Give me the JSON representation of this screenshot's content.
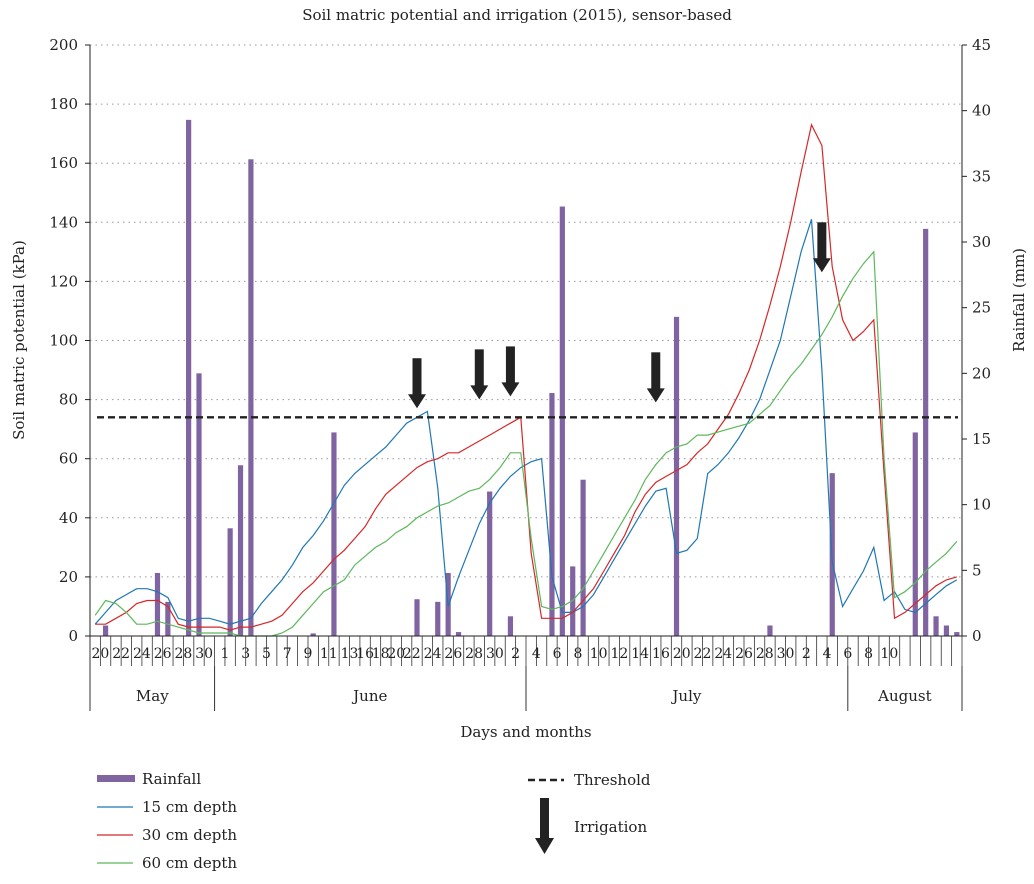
{
  "chart_data": {
    "type": "bar+line",
    "title": "Soil matric potential and irrigation (2015), sensor-based",
    "xlabel": "Days and months",
    "ylabel_left": "Soil matric potential (kPa)",
    "ylabel_right": "Rainfall (mm)",
    "ylim_left": [
      0,
      200
    ],
    "ylim_right": [
      0,
      45
    ],
    "yticks_left": [
      "0",
      "20",
      "40",
      "60",
      "80",
      "100",
      "120",
      "140",
      "160",
      "180",
      "200"
    ],
    "yticks_right": [
      "0",
      "5",
      "10",
      "15",
      "20",
      "25",
      "30",
      "35",
      "40",
      "45"
    ],
    "grid": "horizontal dotted",
    "day_ticks": [
      "20",
      "22",
      "24",
      "26",
      "28",
      "30",
      "1",
      "3",
      "5",
      "7",
      "9",
      "11",
      "13",
      "16",
      "18",
      "20",
      "22",
      "24",
      "26",
      "28",
      "30",
      "2",
      "4",
      "6",
      "8",
      "10",
      "12",
      "14",
      "16",
      "20",
      "22",
      "24",
      "26",
      "28",
      "30",
      "2",
      "4",
      "6",
      "8",
      "10"
    ],
    "months": [
      "May",
      "June",
      "July",
      "August"
    ],
    "day_index_start": "May 20",
    "rainfall": [
      {
        "day": 1,
        "mm": 0.8
      },
      {
        "day": 6,
        "mm": 4.8
      },
      {
        "day": 7,
        "mm": 2.6
      },
      {
        "day": 9,
        "mm": 39.3
      },
      {
        "day": 10,
        "mm": 20
      },
      {
        "day": 13,
        "mm": 8.2
      },
      {
        "day": 14,
        "mm": 13
      },
      {
        "day": 15,
        "mm": 36.3
      },
      {
        "day": 21,
        "mm": 0.2
      },
      {
        "day": 23,
        "mm": 15.5
      },
      {
        "day": 31,
        "mm": 2.8
      },
      {
        "day": 33,
        "mm": 2.6
      },
      {
        "day": 34,
        "mm": 4.8
      },
      {
        "day": 35,
        "mm": 0.3
      },
      {
        "day": 38,
        "mm": 11
      },
      {
        "day": 40,
        "mm": 1.5
      },
      {
        "day": 44,
        "mm": 18.5
      },
      {
        "day": 45,
        "mm": 32.7
      },
      {
        "day": 46,
        "mm": 5.3
      },
      {
        "day": 47,
        "mm": 11.9
      },
      {
        "day": 56,
        "mm": 24.3
      },
      {
        "day": 65,
        "mm": 0.8
      },
      {
        "day": 71,
        "mm": 12.4
      },
      {
        "day": 79,
        "mm": 15.5
      },
      {
        "day": 80,
        "mm": 31
      },
      {
        "day": 81,
        "mm": 1.5
      },
      {
        "day": 82,
        "mm": 0.8
      },
      {
        "day": 83,
        "mm": 0.3
      }
    ],
    "series": [
      {
        "name": "15 cm depth",
        "color": "#1f77b4",
        "points": [
          [
            0,
            4
          ],
          [
            1,
            8
          ],
          [
            2,
            12
          ],
          [
            3,
            14
          ],
          [
            4,
            16
          ],
          [
            5,
            16
          ],
          [
            6,
            15
          ],
          [
            7,
            13
          ],
          [
            8,
            6
          ],
          [
            9,
            5
          ],
          [
            10,
            6
          ],
          [
            11,
            6
          ],
          [
            12,
            5
          ],
          [
            13,
            4
          ],
          [
            14,
            5
          ],
          [
            15,
            6
          ],
          [
            16,
            11
          ],
          [
            17,
            15
          ],
          [
            18,
            19
          ],
          [
            19,
            24
          ],
          [
            20,
            30
          ],
          [
            21,
            34
          ],
          [
            22,
            39
          ],
          [
            23,
            45
          ],
          [
            24,
            51
          ],
          [
            25,
            55
          ],
          [
            26,
            58
          ],
          [
            27,
            61
          ],
          [
            28,
            64
          ],
          [
            29,
            68
          ],
          [
            30,
            72
          ],
          [
            31,
            74
          ],
          [
            32,
            76
          ],
          [
            33,
            50
          ],
          [
            34,
            10
          ],
          [
            35,
            20
          ],
          [
            36,
            29
          ],
          [
            37,
            38
          ],
          [
            38,
            45
          ],
          [
            39,
            50
          ],
          [
            40,
            54
          ],
          [
            41,
            57
          ],
          [
            42,
            59
          ],
          [
            43,
            60
          ],
          [
            44,
            20
          ],
          [
            45,
            8
          ],
          [
            46,
            8
          ],
          [
            47,
            10
          ],
          [
            48,
            14
          ],
          [
            49,
            20
          ],
          [
            50,
            26
          ],
          [
            51,
            32
          ],
          [
            52,
            38
          ],
          [
            53,
            44
          ],
          [
            54,
            49
          ],
          [
            55,
            50
          ],
          [
            56,
            28
          ],
          [
            57,
            29
          ],
          [
            58,
            33
          ],
          [
            59,
            55
          ],
          [
            60,
            58
          ],
          [
            61,
            62
          ],
          [
            62,
            67
          ],
          [
            63,
            73
          ],
          [
            64,
            80
          ],
          [
            65,
            90
          ],
          [
            66,
            100
          ],
          [
            67,
            115
          ],
          [
            68,
            130
          ],
          [
            69,
            141
          ],
          [
            70,
            90
          ],
          [
            71,
            25
          ],
          [
            72,
            10
          ],
          [
            73,
            16
          ],
          [
            74,
            22
          ],
          [
            75,
            30
          ],
          [
            76,
            12
          ],
          [
            77,
            15
          ],
          [
            78,
            9
          ],
          [
            79,
            8
          ],
          [
            80,
            11
          ],
          [
            81,
            14
          ],
          [
            82,
            17
          ],
          [
            83,
            19
          ]
        ]
      },
      {
        "name": "30 cm depth",
        "color": "#d62728",
        "points": [
          [
            0,
            4
          ],
          [
            1,
            4
          ],
          [
            2,
            6
          ],
          [
            3,
            8
          ],
          [
            4,
            11
          ],
          [
            5,
            12
          ],
          [
            6,
            12
          ],
          [
            7,
            10
          ],
          [
            8,
            4
          ],
          [
            9,
            3
          ],
          [
            10,
            3
          ],
          [
            11,
            3
          ],
          [
            12,
            3
          ],
          [
            13,
            2
          ],
          [
            14,
            3
          ],
          [
            15,
            3
          ],
          [
            16,
            4
          ],
          [
            17,
            5
          ],
          [
            18,
            7
          ],
          [
            19,
            11
          ],
          [
            20,
            15
          ],
          [
            21,
            18
          ],
          [
            22,
            22
          ],
          [
            23,
            26
          ],
          [
            24,
            29
          ],
          [
            25,
            33
          ],
          [
            26,
            37
          ],
          [
            27,
            43
          ],
          [
            28,
            48
          ],
          [
            29,
            51
          ],
          [
            30,
            54
          ],
          [
            31,
            57
          ],
          [
            32,
            59
          ],
          [
            33,
            60
          ],
          [
            34,
            62
          ],
          [
            35,
            62
          ],
          [
            36,
            64
          ],
          [
            37,
            66
          ],
          [
            38,
            68
          ],
          [
            39,
            70
          ],
          [
            40,
            72
          ],
          [
            41,
            74
          ],
          [
            42,
            28
          ],
          [
            43,
            6
          ],
          [
            44,
            6
          ],
          [
            45,
            6
          ],
          [
            46,
            8
          ],
          [
            47,
            12
          ],
          [
            48,
            16
          ],
          [
            49,
            22
          ],
          [
            50,
            28
          ],
          [
            51,
            34
          ],
          [
            52,
            42
          ],
          [
            53,
            48
          ],
          [
            54,
            52
          ],
          [
            55,
            54
          ],
          [
            56,
            56
          ],
          [
            57,
            58
          ],
          [
            58,
            62
          ],
          [
            59,
            65
          ],
          [
            60,
            70
          ],
          [
            61,
            75
          ],
          [
            62,
            82
          ],
          [
            63,
            90
          ],
          [
            64,
            100
          ],
          [
            65,
            112
          ],
          [
            66,
            125
          ],
          [
            67,
            140
          ],
          [
            68,
            157
          ],
          [
            69,
            173
          ],
          [
            70,
            166
          ],
          [
            71,
            125
          ],
          [
            72,
            107
          ],
          [
            73,
            100
          ],
          [
            74,
            103
          ],
          [
            75,
            107
          ],
          [
            76,
            55
          ],
          [
            77,
            6
          ],
          [
            78,
            8
          ],
          [
            79,
            11
          ],
          [
            80,
            14
          ],
          [
            81,
            17
          ],
          [
            82,
            19
          ],
          [
            83,
            20
          ]
        ]
      },
      {
        "name": "60 cm depth",
        "color": "#5cb85c",
        "points": [
          [
            0,
            7
          ],
          [
            1,
            12
          ],
          [
            2,
            11
          ],
          [
            3,
            8
          ],
          [
            4,
            4
          ],
          [
            5,
            4
          ],
          [
            6,
            5
          ],
          [
            7,
            4
          ],
          [
            8,
            3
          ],
          [
            9,
            2
          ],
          [
            10,
            1
          ],
          [
            11,
            1
          ],
          [
            12,
            1
          ],
          [
            13,
            1
          ],
          [
            14,
            0
          ],
          [
            15,
            0
          ],
          [
            16,
            0
          ],
          [
            17,
            0
          ],
          [
            18,
            1
          ],
          [
            19,
            3
          ],
          [
            20,
            7
          ],
          [
            21,
            11
          ],
          [
            22,
            15
          ],
          [
            23,
            17
          ],
          [
            24,
            19
          ],
          [
            25,
            24
          ],
          [
            26,
            27
          ],
          [
            27,
            30
          ],
          [
            28,
            32
          ],
          [
            29,
            35
          ],
          [
            30,
            37
          ],
          [
            31,
            40
          ],
          [
            32,
            42
          ],
          [
            33,
            44
          ],
          [
            34,
            45
          ],
          [
            35,
            47
          ],
          [
            36,
            49
          ],
          [
            37,
            50
          ],
          [
            38,
            53
          ],
          [
            39,
            57
          ],
          [
            40,
            62
          ],
          [
            41,
            62
          ],
          [
            42,
            33
          ],
          [
            43,
            10
          ],
          [
            44,
            9
          ],
          [
            45,
            10
          ],
          [
            46,
            12
          ],
          [
            47,
            16
          ],
          [
            48,
            22
          ],
          [
            49,
            28
          ],
          [
            50,
            34
          ],
          [
            51,
            40
          ],
          [
            52,
            46
          ],
          [
            53,
            53
          ],
          [
            54,
            58
          ],
          [
            55,
            62
          ],
          [
            56,
            64
          ],
          [
            57,
            65
          ],
          [
            58,
            68
          ],
          [
            59,
            68
          ],
          [
            60,
            69
          ],
          [
            61,
            70
          ],
          [
            62,
            71
          ],
          [
            63,
            72
          ],
          [
            64,
            75
          ],
          [
            65,
            78
          ],
          [
            66,
            83
          ],
          [
            67,
            88
          ],
          [
            68,
            92
          ],
          [
            69,
            97
          ],
          [
            70,
            102
          ],
          [
            71,
            108
          ],
          [
            72,
            115
          ],
          [
            73,
            121
          ],
          [
            74,
            126
          ],
          [
            75,
            130
          ],
          [
            76,
            60
          ],
          [
            77,
            13
          ],
          [
            78,
            15
          ],
          [
            79,
            18
          ],
          [
            80,
            22
          ],
          [
            81,
            25
          ],
          [
            82,
            28
          ],
          [
            83,
            32
          ]
        ]
      }
    ],
    "threshold": {
      "name": "Threshold",
      "value": 74
    },
    "irrigation": {
      "name": "Irrigation",
      "events": [
        [
          31,
          94
        ],
        [
          37,
          97
        ],
        [
          40,
          98
        ],
        [
          54,
          96
        ],
        [
          70,
          140
        ]
      ]
    },
    "legend": [
      {
        "label": "Rainfall",
        "kind": "bar",
        "color": "#8064a2"
      },
      {
        "label": "15 cm depth",
        "kind": "line",
        "color": "#1f77b4"
      },
      {
        "label": "30 cm depth",
        "kind": "line",
        "color": "#d62728"
      },
      {
        "label": "60 cm depth",
        "kind": "line",
        "color": "#5cb85c"
      },
      {
        "label": "Threshold",
        "kind": "dashed",
        "color": "#222222"
      },
      {
        "label": "Irrigation",
        "kind": "arrow",
        "color": "#222222"
      }
    ]
  }
}
